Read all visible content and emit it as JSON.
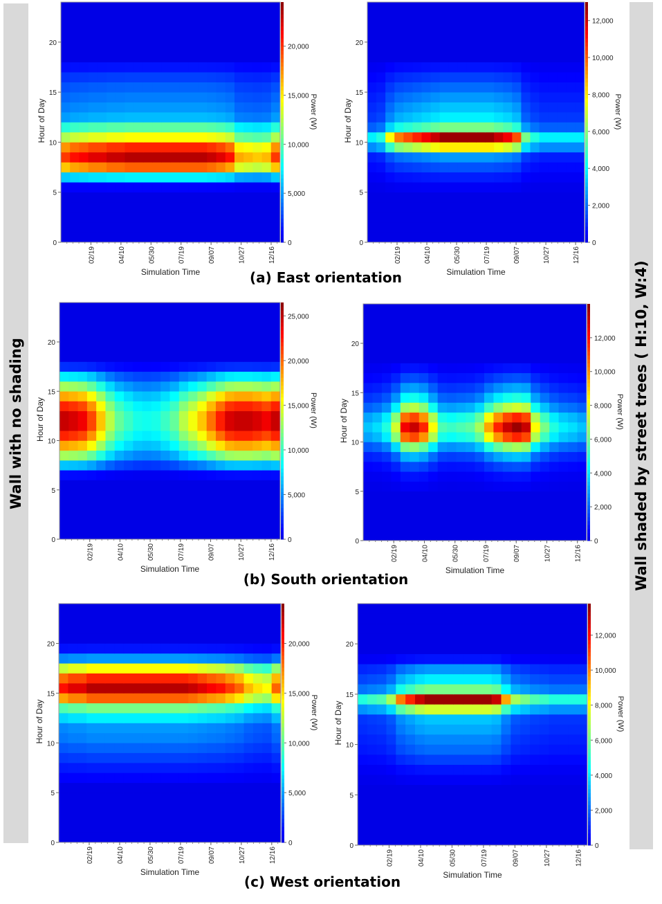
{
  "side_labels": {
    "left": "Wall with no shading",
    "right": "Wall shaded by street trees ( H:10, W:4)"
  },
  "captions": [
    "(a) East orientation",
    "(b) South orientation",
    "(c) West orientation"
  ],
  "colors": {
    "background": "#00008f",
    "side_bar": "#d9d9d9"
  },
  "chart_data": [
    {
      "type": "heatmap",
      "panel": "East, no shading",
      "xlabel": "Simulation Time",
      "ylabel": "Hour of Day",
      "colorbar_label": "Power (W)",
      "xlim": [
        0,
        365
      ],
      "ylim": [
        0,
        24
      ],
      "zlim": [
        0,
        24500
      ],
      "x_ticks": [
        50,
        100,
        150,
        200,
        250,
        300,
        350
      ],
      "x_tick_labels": [
        "02/19",
        "04/10",
        "05/30",
        "07/19",
        "09/07",
        "10/27",
        "12/16"
      ],
      "y_ticks": [
        0,
        5,
        10,
        15,
        20
      ],
      "y_tick_labels": [
        "0",
        "5",
        "10",
        "15",
        "20"
      ],
      "colorbar_ticks": [
        0,
        5000,
        10000,
        15000,
        20000
      ],
      "colorbar_tick_labels": [
        "0",
        "5,000",
        "10,000",
        "15,000",
        "20,000"
      ],
      "hour_profile": [
        0,
        0,
        0,
        0,
        0,
        0.03,
        0.3,
        0.78,
        0.97,
        0.85,
        0.6,
        0.42,
        0.24,
        0.2,
        0.17,
        0.14,
        0.1,
        0.05,
        0,
        0,
        0,
        0,
        0,
        0
      ],
      "season_profile": [
        0.85,
        0.9,
        0.92,
        0.95,
        0.95,
        0.98,
        0.98,
        1,
        1,
        1,
        1,
        1,
        1,
        1,
        1,
        1,
        0.98,
        0.95,
        0.9,
        0.72,
        0.7,
        0.68,
        0.7,
        0.85
      ]
    },
    {
      "type": "heatmap",
      "panel": "East, shaded by street trees",
      "xlabel": "Simulation Time",
      "ylabel": "Hour of Day",
      "colorbar_label": "Power (W)",
      "xlim": [
        0,
        365
      ],
      "ylim": [
        0,
        24
      ],
      "zlim": [
        0,
        13000
      ],
      "x_ticks": [
        50,
        100,
        150,
        200,
        250,
        300,
        350
      ],
      "x_tick_labels": [
        "02/19",
        "04/10",
        "05/30",
        "07/19",
        "09/07",
        "10/27",
        "12/16"
      ],
      "y_ticks": [
        0,
        5,
        10,
        15,
        20
      ],
      "y_tick_labels": [
        "0",
        "5",
        "10",
        "15",
        "20"
      ],
      "colorbar_ticks": [
        0,
        2000,
        4000,
        6000,
        8000,
        10000,
        12000
      ],
      "colorbar_tick_labels": [
        "0",
        "2,000",
        "4,000",
        "6,000",
        "8,000",
        "10,000",
        "12,000"
      ],
      "hour_profile": [
        0,
        0,
        0,
        0,
        0,
        0.02,
        0.06,
        0.12,
        0.2,
        0.62,
        1,
        0.45,
        0.3,
        0.25,
        0.2,
        0.15,
        0.1,
        0.05,
        0,
        0,
        0,
        0,
        0,
        0
      ],
      "season_profile": [
        0.3,
        0.35,
        0.6,
        0.75,
        0.8,
        0.85,
        0.9,
        0.95,
        1,
        1,
        1,
        1,
        1,
        1,
        0.95,
        0.9,
        0.8,
        0.45,
        0.35,
        0.3,
        0.3,
        0.3,
        0.3,
        0.3
      ]
    },
    {
      "type": "heatmap",
      "panel": "South, no shading",
      "xlabel": "Simulation Time",
      "ylabel": "Hour of Day",
      "colorbar_label": "Power (W)",
      "xlim": [
        0,
        365
      ],
      "ylim": [
        0,
        24
      ],
      "zlim": [
        0,
        26500
      ],
      "x_ticks": [
        50,
        100,
        150,
        200,
        250,
        300,
        350
      ],
      "x_tick_labels": [
        "02/19",
        "04/10",
        "05/30",
        "07/19",
        "09/07",
        "10/27",
        "12/16"
      ],
      "y_ticks": [
        0,
        5,
        10,
        15,
        20
      ],
      "y_tick_labels": [
        "0",
        "5",
        "10",
        "15",
        "20"
      ],
      "colorbar_ticks": [
        0,
        5000,
        10000,
        15000,
        20000,
        25000
      ],
      "colorbar_tick_labels": [
        "0",
        "5,000",
        "10,000",
        "15,000",
        "20,000",
        "25,000"
      ],
      "hour_profile": [
        0,
        0,
        0,
        0,
        0,
        0,
        0.04,
        0.25,
        0.5,
        0.7,
        0.85,
        0.95,
        0.95,
        0.85,
        0.7,
        0.5,
        0.3,
        0.08,
        0,
        0,
        0,
        0,
        0,
        0
      ],
      "season_profile": [
        1,
        0.98,
        0.95,
        0.85,
        0.7,
        0.55,
        0.45,
        0.4,
        0.36,
        0.35,
        0.36,
        0.4,
        0.45,
        0.55,
        0.62,
        0.7,
        0.8,
        0.9,
        0.98,
        1,
        1,
        0.98,
        0.95,
        1
      ]
    },
    {
      "type": "heatmap",
      "panel": "South, shaded by street trees",
      "xlabel": "Simulation Time",
      "ylabel": "Hour of Day",
      "colorbar_label": "Power (W)",
      "xlim": [
        0,
        365
      ],
      "ylim": [
        0,
        24
      ],
      "zlim": [
        0,
        14000
      ],
      "x_ticks": [
        50,
        100,
        150,
        200,
        250,
        300,
        350
      ],
      "x_tick_labels": [
        "02/19",
        "04/10",
        "05/30",
        "07/19",
        "09/07",
        "10/27",
        "12/16"
      ],
      "y_ticks": [
        0,
        5,
        10,
        15,
        20
      ],
      "y_tick_labels": [
        "0",
        "5",
        "10",
        "15",
        "20"
      ],
      "colorbar_ticks": [
        0,
        2000,
        4000,
        6000,
        8000,
        10000,
        12000
      ],
      "colorbar_tick_labels": [
        "0",
        "2,000",
        "4,000",
        "6,000",
        "8,000",
        "10,000",
        "12,000"
      ],
      "hour_profile": [
        0,
        0,
        0,
        0,
        0,
        0.02,
        0.05,
        0.12,
        0.25,
        0.5,
        0.85,
        1,
        0.85,
        0.55,
        0.35,
        0.22,
        0.12,
        0.05,
        0,
        0,
        0,
        0,
        0,
        0
      ],
      "season_profile": [
        0.25,
        0.28,
        0.35,
        0.55,
        0.9,
        0.95,
        0.85,
        0.6,
        0.4,
        0.38,
        0.4,
        0.42,
        0.5,
        0.7,
        0.85,
        0.95,
        1,
        0.95,
        0.6,
        0.45,
        0.35,
        0.3,
        0.28,
        0.25
      ]
    },
    {
      "type": "heatmap",
      "panel": "West, no shading",
      "xlabel": "Simulation Time",
      "ylabel": "Hour of Day",
      "colorbar_label": "Power (W)",
      "xlim": [
        0,
        365
      ],
      "ylim": [
        0,
        24
      ],
      "zlim": [
        0,
        24000
      ],
      "x_ticks": [
        50,
        100,
        150,
        200,
        250,
        300,
        350
      ],
      "x_tick_labels": [
        "02/19",
        "04/10",
        "05/30",
        "07/19",
        "09/07",
        "10/27",
        "12/16"
      ],
      "y_ticks": [
        0,
        5,
        10,
        15,
        20
      ],
      "y_tick_labels": [
        "0",
        "5",
        "10",
        "15",
        "20"
      ],
      "colorbar_ticks": [
        0,
        5000,
        10000,
        15000,
        20000
      ],
      "colorbar_tick_labels": [
        "0",
        "5,000",
        "10,000",
        "15,000",
        "20,000"
      ],
      "hour_profile": [
        0,
        0,
        0,
        0,
        0,
        0,
        0.03,
        0.06,
        0.1,
        0.14,
        0.18,
        0.2,
        0.3,
        0.45,
        0.78,
        0.97,
        0.85,
        0.6,
        0.2,
        0.05,
        0,
        0,
        0,
        0
      ],
      "season_profile": [
        0.9,
        0.95,
        0.95,
        1,
        1,
        1,
        1,
        1,
        1,
        1,
        1,
        1,
        1,
        1,
        0.98,
        0.95,
        0.92,
        0.9,
        0.85,
        0.8,
        0.7,
        0.65,
        0.62,
        0.8
      ]
    },
    {
      "type": "heatmap",
      "panel": "West, shaded by street trees",
      "xlabel": "Simulation Time",
      "ylabel": "Hour of Day",
      "colorbar_label": "Power (W)",
      "xlim": [
        0,
        365
      ],
      "ylim": [
        0,
        24
      ],
      "zlim": [
        0,
        13800
      ],
      "x_ticks": [
        50,
        100,
        150,
        200,
        250,
        300,
        350
      ],
      "x_tick_labels": [
        "02/19",
        "04/10",
        "05/30",
        "07/19",
        "09/07",
        "10/27",
        "12/16"
      ],
      "y_ticks": [
        0,
        5,
        10,
        15,
        20
      ],
      "y_tick_labels": [
        "0",
        "5",
        "10",
        "15",
        "20"
      ],
      "colorbar_ticks": [
        0,
        2000,
        4000,
        6000,
        8000,
        10000,
        12000
      ],
      "colorbar_tick_labels": [
        "0",
        "2,000",
        "4,000",
        "6,000",
        "8,000",
        "10,000",
        "12,000"
      ],
      "hour_profile": [
        0,
        0,
        0,
        0,
        0,
        0,
        0.02,
        0.05,
        0.1,
        0.15,
        0.18,
        0.22,
        0.25,
        0.55,
        1,
        0.45,
        0.3,
        0.2,
        0.05,
        0,
        0,
        0,
        0,
        0
      ],
      "season_profile": [
        0.35,
        0.38,
        0.4,
        0.5,
        0.75,
        0.85,
        0.95,
        1,
        1,
        1,
        1,
        1,
        1,
        1,
        0.95,
        0.7,
        0.5,
        0.45,
        0.4,
        0.38,
        0.35,
        0.35,
        0.35,
        0.35
      ]
    }
  ]
}
